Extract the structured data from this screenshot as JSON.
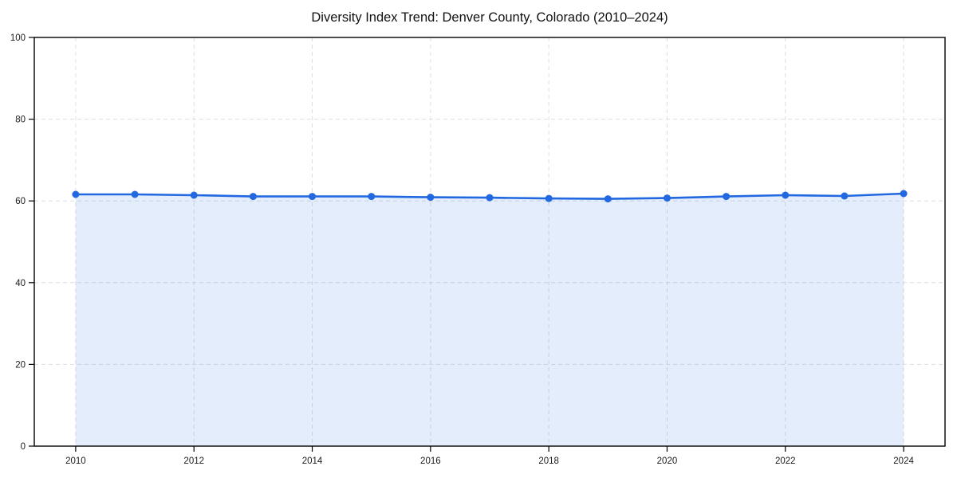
{
  "page": {
    "background": "#ffffff"
  },
  "chart_data": {
    "type": "line",
    "title": "Diversity Index Trend: Denver County, Colorado (2010–2024)",
    "xlabel": "",
    "ylabel": "",
    "x": [
      2010,
      2011,
      2012,
      2013,
      2014,
      2015,
      2016,
      2017,
      2018,
      2019,
      2020,
      2021,
      2022,
      2023,
      2024
    ],
    "series": [
      {
        "name": "Diversity Index",
        "values": [
          61.6,
          61.6,
          61.4,
          61.1,
          61.1,
          61.1,
          60.9,
          60.8,
          60.6,
          60.5,
          60.7,
          61.1,
          61.4,
          61.2,
          61.8
        ],
        "line_color": "#2268e0",
        "marker_color": "#2268e0",
        "marker": "circle",
        "fill_color": "#2268e0",
        "fill_opacity": 0.12
      }
    ],
    "ylim": [
      0,
      100
    ],
    "yticks": [
      0,
      20,
      40,
      60,
      80,
      100
    ],
    "xticks": [
      2010,
      2012,
      2014,
      2016,
      2018,
      2020,
      2022,
      2024
    ],
    "grid": true,
    "grid_color": "#dedede",
    "grid_style": "dashed",
    "axis_color": "#000000",
    "tick_label_color": "#1a1a1a",
    "legend": false,
    "legend_position": "none"
  }
}
